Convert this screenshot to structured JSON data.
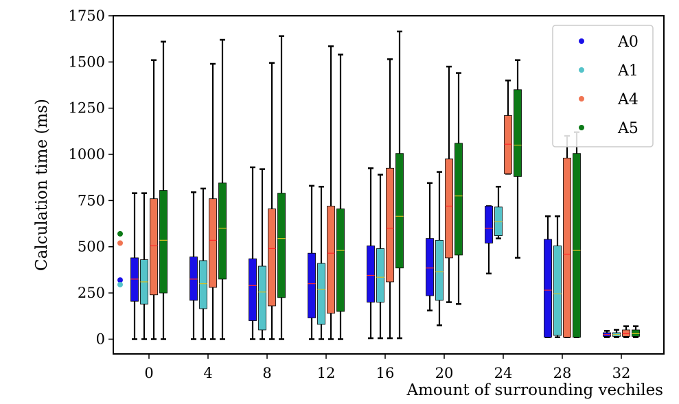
{
  "chart_data": {
    "type": "boxplot",
    "xlabel": "Amount of surrounding vechiles",
    "ylabel": "Calculation time (ms)",
    "ylim": [
      -80,
      1750
    ],
    "yticks": [
      0,
      250,
      500,
      750,
      1000,
      1250,
      1500,
      1750
    ],
    "categories": [
      "0",
      "4",
      "8",
      "12",
      "16",
      "20",
      "24",
      "28",
      "32"
    ],
    "legend_position": "top-right",
    "series": [
      {
        "name": "A0",
        "color": "#1a10e8",
        "boxes": [
          {
            "min": 0,
            "q1": 205,
            "median": 325,
            "q3": 440,
            "max": 790
          },
          {
            "min": 0,
            "q1": 210,
            "median": 325,
            "q3": 445,
            "max": 795
          },
          {
            "min": 0,
            "q1": 100,
            "median": 290,
            "q3": 435,
            "max": 930
          },
          {
            "min": 0,
            "q1": 115,
            "median": 300,
            "q3": 465,
            "max": 830
          },
          {
            "min": 5,
            "q1": 200,
            "median": 345,
            "q3": 505,
            "max": 925
          },
          {
            "min": 155,
            "q1": 235,
            "median": 385,
            "q3": 545,
            "max": 845
          },
          {
            "min": 355,
            "q1": 520,
            "median": 600,
            "q3": 720,
            "max": 720
          },
          {
            "min": 10,
            "q1": 10,
            "median": 265,
            "q3": 540,
            "max": 665
          },
          {
            "min": 10,
            "q1": 15,
            "median": 25,
            "q3": 35,
            "max": 45
          }
        ]
      },
      {
        "name": "A1",
        "color": "#55c3c9",
        "boxes": [
          {
            "min": 0,
            "q1": 190,
            "median": 310,
            "q3": 430,
            "max": 790
          },
          {
            "min": 0,
            "q1": 165,
            "median": 300,
            "q3": 425,
            "max": 815
          },
          {
            "min": 0,
            "q1": 50,
            "median": 255,
            "q3": 395,
            "max": 920
          },
          {
            "min": 0,
            "q1": 80,
            "median": 270,
            "q3": 410,
            "max": 825
          },
          {
            "min": 5,
            "q1": 200,
            "median": 335,
            "q3": 490,
            "max": 890
          },
          {
            "min": 75,
            "q1": 210,
            "median": 365,
            "q3": 535,
            "max": 905
          },
          {
            "min": 545,
            "q1": 560,
            "median": 635,
            "q3": 715,
            "max": 825
          },
          {
            "min": 10,
            "q1": 20,
            "median": 245,
            "q3": 505,
            "max": 665
          },
          {
            "min": 10,
            "q1": 15,
            "median": 25,
            "q3": 35,
            "max": 50
          }
        ]
      },
      {
        "name": "A4",
        "color": "#f07452",
        "boxes": [
          {
            "min": 0,
            "q1": 240,
            "median": 505,
            "q3": 760,
            "max": 1510
          },
          {
            "min": 0,
            "q1": 280,
            "median": 535,
            "q3": 760,
            "max": 1490
          },
          {
            "min": 0,
            "q1": 180,
            "median": 490,
            "q3": 705,
            "max": 1495
          },
          {
            "min": 0,
            "q1": 140,
            "median": 465,
            "q3": 720,
            "max": 1585
          },
          {
            "min": 5,
            "q1": 310,
            "median": 600,
            "q3": 925,
            "max": 1515
          },
          {
            "min": 200,
            "q1": 440,
            "median": 720,
            "q3": 975,
            "max": 1475
          },
          {
            "min": 895,
            "q1": 895,
            "median": 1055,
            "q3": 1210,
            "max": 1400
          },
          {
            "min": 10,
            "q1": 10,
            "median": 460,
            "q3": 980,
            "max": 1100
          },
          {
            "min": 10,
            "q1": 15,
            "median": 30,
            "q3": 50,
            "max": 70
          }
        ]
      },
      {
        "name": "A5",
        "color": "#0c7a17",
        "boxes": [
          {
            "min": 0,
            "q1": 250,
            "median": 535,
            "q3": 805,
            "max": 1610
          },
          {
            "min": 0,
            "q1": 325,
            "median": 600,
            "q3": 845,
            "max": 1620
          },
          {
            "min": 0,
            "q1": 225,
            "median": 545,
            "q3": 790,
            "max": 1640
          },
          {
            "min": 0,
            "q1": 150,
            "median": 480,
            "q3": 705,
            "max": 1540
          },
          {
            "min": 5,
            "q1": 385,
            "median": 665,
            "q3": 1005,
            "max": 1665
          },
          {
            "min": 190,
            "q1": 455,
            "median": 775,
            "q3": 1060,
            "max": 1440
          },
          {
            "min": 440,
            "q1": 880,
            "median": 1050,
            "q3": 1350,
            "max": 1510
          },
          {
            "min": 10,
            "q1": 10,
            "median": 480,
            "q3": 1005,
            "max": 1120
          },
          {
            "min": 10,
            "q1": 15,
            "median": 30,
            "q3": 50,
            "max": 70
          }
        ]
      }
    ],
    "outliers": [
      {
        "series": "A0",
        "value": 320
      },
      {
        "series": "A1",
        "value": 295
      },
      {
        "series": "A4",
        "value": 520
      },
      {
        "series": "A5",
        "value": 570
      }
    ],
    "median_line_colors": [
      "#ff2a2a",
      "#d8c020"
    ]
  }
}
